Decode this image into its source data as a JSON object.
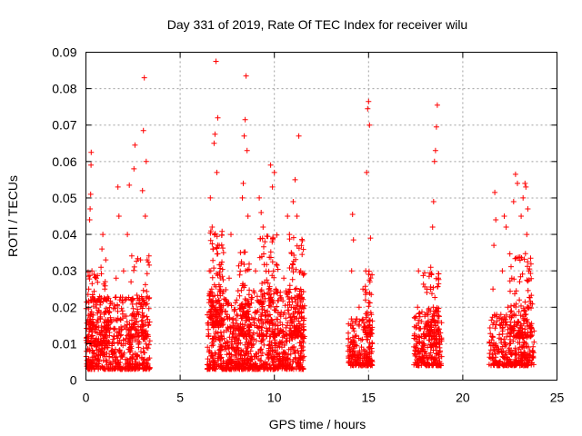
{
  "chart_data": {
    "type": "scatter",
    "title": "Day 331 of 2019, Rate Of TEC Index for receiver wilu",
    "xlabel": "GPS time / hours",
    "ylabel": "ROTI / TECUs",
    "xlim": [
      0,
      25
    ],
    "ylim": [
      0,
      0.09
    ],
    "xticks": [
      0,
      5,
      10,
      15,
      20,
      25
    ],
    "xtick_labels": [
      "0",
      "5",
      "10",
      "15",
      "20",
      "25"
    ],
    "yticks": [
      0,
      0.01,
      0.02,
      0.03,
      0.04,
      0.05,
      0.06,
      0.07,
      0.08,
      0.09
    ],
    "ytick_labels": [
      "0",
      "0.01",
      "0.02",
      "0.03",
      "0.04",
      "0.05",
      "0.06",
      "0.07",
      "0.08",
      "0.09"
    ],
    "grid": true,
    "marker": "+",
    "series_color": "#ff0000",
    "series": [
      {
        "name": "ROTI",
        "points": [
          [
            0.1,
            0.012
          ],
          [
            0.15,
            0.025
          ],
          [
            0.2,
            0.044
          ],
          [
            0.22,
            0.047
          ],
          [
            0.25,
            0.051
          ],
          [
            0.27,
            0.059
          ],
          [
            0.28,
            0.0625
          ],
          [
            0.3,
            0.018
          ],
          [
            0.32,
            0.03
          ],
          [
            0.35,
            0.008
          ],
          [
            0.4,
            0.015
          ],
          [
            0.45,
            0.022
          ],
          [
            0.5,
            0.01
          ],
          [
            0.55,
            0.028
          ],
          [
            0.6,
            0.013
          ],
          [
            0.65,
            0.007
          ],
          [
            0.7,
            0.019
          ],
          [
            0.8,
            0.031
          ],
          [
            0.85,
            0.036
          ],
          [
            0.9,
            0.04
          ],
          [
            0.95,
            0.011
          ],
          [
            1.0,
            0.025
          ],
          [
            1.05,
            0.033
          ],
          [
            1.1,
            0.009
          ],
          [
            1.2,
            0.016
          ],
          [
            1.3,
            0.021
          ],
          [
            1.4,
            0.01
          ],
          [
            1.5,
            0.012
          ],
          [
            1.6,
            0.028
          ],
          [
            1.7,
            0.053
          ],
          [
            1.75,
            0.045
          ],
          [
            1.8,
            0.008
          ],
          [
            1.9,
            0.014
          ],
          [
            2.0,
            0.03
          ],
          [
            2.1,
            0.01
          ],
          [
            2.2,
            0.04
          ],
          [
            2.3,
            0.0535
          ],
          [
            2.4,
            0.022
          ],
          [
            2.5,
            0.012
          ],
          [
            2.55,
            0.058
          ],
          [
            2.6,
            0.0645
          ],
          [
            2.7,
            0.018
          ],
          [
            2.8,
            0.009
          ],
          [
            2.9,
            0.033
          ],
          [
            3.0,
            0.052
          ],
          [
            3.05,
            0.0685
          ],
          [
            3.1,
            0.083
          ],
          [
            3.15,
            0.045
          ],
          [
            3.2,
            0.06
          ],
          [
            3.25,
            0.033
          ],
          [
            3.3,
            0.015
          ],
          [
            6.5,
            0.012
          ],
          [
            6.55,
            0.03
          ],
          [
            6.6,
            0.05
          ],
          [
            6.7,
            0.042
          ],
          [
            6.75,
            0.036
          ],
          [
            6.8,
            0.065
          ],
          [
            6.85,
            0.0675
          ],
          [
            6.9,
            0.0875
          ],
          [
            6.95,
            0.057
          ],
          [
            7.0,
            0.072
          ],
          [
            7.1,
            0.025
          ],
          [
            7.2,
            0.012
          ],
          [
            7.3,
            0.035
          ],
          [
            7.4,
            0.01
          ],
          [
            7.5,
            0.018
          ],
          [
            7.6,
            0.028
          ],
          [
            7.7,
            0.04
          ],
          [
            7.8,
            0.015
          ],
          [
            7.9,
            0.008
          ],
          [
            8.0,
            0.022
          ],
          [
            8.1,
            0.011
          ],
          [
            8.2,
            0.035
          ],
          [
            8.3,
            0.05
          ],
          [
            8.35,
            0.054
          ],
          [
            8.4,
            0.067
          ],
          [
            8.45,
            0.0715
          ],
          [
            8.5,
            0.0835
          ],
          [
            8.55,
            0.063
          ],
          [
            8.6,
            0.045
          ],
          [
            8.7,
            0.02
          ],
          [
            8.8,
            0.009
          ],
          [
            8.9,
            0.013
          ],
          [
            9.0,
            0.03
          ],
          [
            9.2,
            0.05
          ],
          [
            9.3,
            0.046
          ],
          [
            9.4,
            0.042
          ],
          [
            9.5,
            0.038
          ],
          [
            9.6,
            0.012
          ],
          [
            9.7,
            0.025
          ],
          [
            9.8,
            0.059
          ],
          [
            9.9,
            0.053
          ],
          [
            10.0,
            0.057
          ],
          [
            10.1,
            0.01
          ],
          [
            10.3,
            0.018
          ],
          [
            10.5,
            0.028
          ],
          [
            10.7,
            0.045
          ],
          [
            10.8,
            0.04
          ],
          [
            10.9,
            0.035
          ],
          [
            11.0,
            0.049
          ],
          [
            11.1,
            0.055
          ],
          [
            11.2,
            0.045
          ],
          [
            11.3,
            0.067
          ],
          [
            11.4,
            0.03
          ],
          [
            11.5,
            0.02
          ],
          [
            11.6,
            0.012
          ],
          [
            14.0,
            0.009
          ],
          [
            14.05,
            0.015
          ],
          [
            14.1,
            0.03
          ],
          [
            14.15,
            0.0455
          ],
          [
            14.2,
            0.0385
          ],
          [
            14.3,
            0.012
          ],
          [
            14.4,
            0.007
          ],
          [
            14.5,
            0.02
          ],
          [
            14.6,
            0.011
          ],
          [
            14.7,
            0.025
          ],
          [
            14.8,
            0.008
          ],
          [
            14.85,
            0.03
          ],
          [
            14.9,
            0.057
          ],
          [
            14.95,
            0.0745
          ],
          [
            15.0,
            0.0765
          ],
          [
            15.05,
            0.07
          ],
          [
            15.1,
            0.039
          ],
          [
            15.15,
            0.018
          ],
          [
            15.2,
            0.01
          ],
          [
            17.5,
            0.009
          ],
          [
            17.55,
            0.015
          ],
          [
            17.6,
            0.02
          ],
          [
            17.65,
            0.03
          ],
          [
            17.8,
            0.012
          ],
          [
            17.9,
            0.006
          ],
          [
            18.0,
            0.018
          ],
          [
            18.1,
            0.025
          ],
          [
            18.2,
            0.011
          ],
          [
            18.3,
            0.031
          ],
          [
            18.4,
            0.042
          ],
          [
            18.45,
            0.049
          ],
          [
            18.5,
            0.06
          ],
          [
            18.55,
            0.063
          ],
          [
            18.6,
            0.0695
          ],
          [
            18.65,
            0.0755
          ],
          [
            18.7,
            0.028
          ],
          [
            18.75,
            0.014
          ],
          [
            18.8,
            0.008
          ],
          [
            21.5,
            0.006
          ],
          [
            21.55,
            0.012
          ],
          [
            21.6,
            0.025
          ],
          [
            21.65,
            0.037
          ],
          [
            21.7,
            0.0515
          ],
          [
            21.75,
            0.044
          ],
          [
            21.8,
            0.018
          ],
          [
            21.9,
            0.008
          ],
          [
            22.0,
            0.015
          ],
          [
            22.1,
            0.03
          ],
          [
            22.2,
            0.045
          ],
          [
            22.3,
            0.042
          ],
          [
            22.4,
            0.02
          ],
          [
            22.5,
            0.01
          ],
          [
            22.6,
            0.028
          ],
          [
            22.7,
            0.049
          ],
          [
            22.8,
            0.0565
          ],
          [
            22.9,
            0.054
          ],
          [
            23.0,
            0.022
          ],
          [
            23.1,
            0.045
          ],
          [
            23.2,
            0.05
          ],
          [
            23.3,
            0.054
          ],
          [
            23.35,
            0.053
          ],
          [
            23.4,
            0.04
          ],
          [
            23.45,
            0.047
          ],
          [
            23.5,
            0.03
          ],
          [
            23.6,
            0.015
          ],
          [
            23.7,
            0.008
          ]
        ],
        "dense_bands": [
          {
            "x_range": [
              0.0,
              3.4
            ],
            "y_range": [
              0.003,
              0.023
            ],
            "count": 520
          },
          {
            "x_range": [
              0.0,
              1.3
            ],
            "y_range": [
              0.01,
              0.03
            ],
            "count": 110
          },
          {
            "x_range": [
              2.3,
              3.4
            ],
            "y_range": [
              0.012,
              0.035
            ],
            "count": 70
          },
          {
            "x_range": [
              6.4,
              11.6
            ],
            "y_range": [
              0.003,
              0.025
            ],
            "count": 900
          },
          {
            "x_range": [
              6.6,
              7.3
            ],
            "y_range": [
              0.015,
              0.041
            ],
            "count": 110
          },
          {
            "x_range": [
              8.1,
              8.7
            ],
            "y_range": [
              0.012,
              0.036
            ],
            "count": 80
          },
          {
            "x_range": [
              9.2,
              10.2
            ],
            "y_range": [
              0.012,
              0.04
            ],
            "count": 100
          },
          {
            "x_range": [
              10.8,
              11.6
            ],
            "y_range": [
              0.012,
              0.04
            ],
            "count": 100
          },
          {
            "x_range": [
              13.9,
              15.2
            ],
            "y_range": [
              0.004,
              0.017
            ],
            "count": 180
          },
          {
            "x_range": [
              14.8,
              15.2
            ],
            "y_range": [
              0.012,
              0.03
            ],
            "count": 40
          },
          {
            "x_range": [
              17.4,
              18.9
            ],
            "y_range": [
              0.004,
              0.02
            ],
            "count": 220
          },
          {
            "x_range": [
              17.9,
              18.8
            ],
            "y_range": [
              0.012,
              0.03
            ],
            "count": 70
          },
          {
            "x_range": [
              21.4,
              23.8
            ],
            "y_range": [
              0.004,
              0.018
            ],
            "count": 320
          },
          {
            "x_range": [
              22.5,
              23.7
            ],
            "y_range": [
              0.012,
              0.035
            ],
            "count": 120
          }
        ]
      }
    ]
  }
}
